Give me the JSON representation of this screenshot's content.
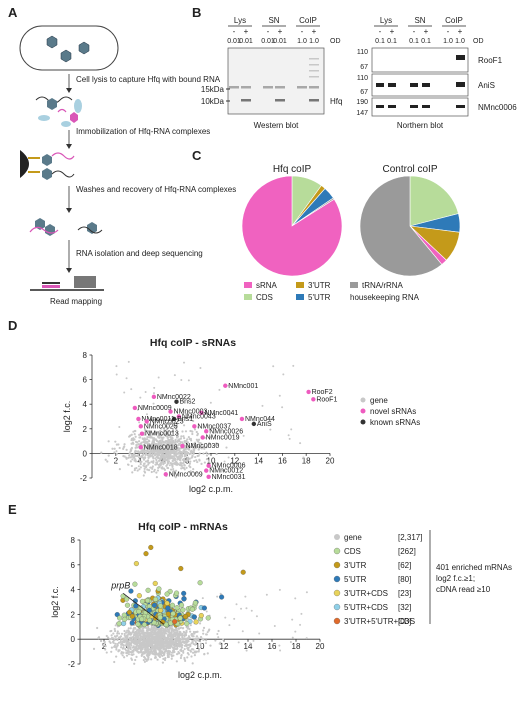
{
  "panels": {
    "A": "A",
    "B": "B",
    "C": "C",
    "D": "D",
    "E": "E"
  },
  "workflow": {
    "steps": [
      "Cell lysis to capture Hfq with bound RNA",
      "Immobilization of Hfq-RNA complexes",
      "Washes and recovery of Hfq-RNA complexes",
      "RNA isolation and deep sequencing"
    ],
    "read_mapping": "Read mapping"
  },
  "western": {
    "groups": [
      "Lys",
      "SN",
      "CoIP"
    ],
    "signs": [
      "-",
      "+",
      "-",
      "+",
      "-",
      "+"
    ],
    "od": [
      "0.01",
      "0.01",
      "0.01",
      "0.01",
      "1.0",
      "1.0"
    ],
    "od_label": "OD",
    "markers": [
      "15kDa",
      "10kDa"
    ],
    "band_label": "Hfq",
    "caption": "Western blot"
  },
  "northern": {
    "groups": [
      "Lys",
      "SN",
      "CoIP"
    ],
    "signs": [
      "-",
      "+",
      "-",
      "+",
      "-",
      "+"
    ],
    "od": [
      "0.1",
      "0.1",
      "0.1",
      "0.1",
      "1.0",
      "1.0"
    ],
    "od_label": "OD",
    "rows": [
      {
        "markers": [
          "110",
          "67"
        ],
        "label": "RooF1"
      },
      {
        "markers": [
          "110",
          "67"
        ],
        "label": "AniS"
      },
      {
        "markers": [
          "190",
          "147"
        ],
        "label": "NMnc0006"
      }
    ],
    "caption": "Northern blot"
  },
  "colors": {
    "sRNA": "#f062c0",
    "CDS": "#b7dc9a",
    "UTR3": "#c49a1a",
    "UTR5": "#2e7ab8",
    "trna": "#9a9a9a",
    "gene": "#c8c8c8",
    "novel": "#ee5bbf",
    "known": "#333333",
    "utr3cds": "#e8d35a",
    "utr5cds": "#8fd0e8",
    "all": "#e06a2a"
  },
  "pies": {
    "titles": [
      "Hfq coIP",
      "Control coIP"
    ],
    "legend": [
      "sRNA",
      "3'UTR",
      "tRNA/rRNA",
      "CDS",
      "5'UTR",
      "housekeeping RNA"
    ]
  },
  "chart_data": [
    {
      "type": "pie",
      "title": "Hfq coIP",
      "slices": [
        {
          "name": "sRNA",
          "value": 84
        },
        {
          "name": "CDS",
          "value": 10
        },
        {
          "name": "3'UTR",
          "value": 1.5
        },
        {
          "name": "5'UTR",
          "value": 4
        },
        {
          "name": "tRNA/rRNA",
          "value": 0.5
        }
      ]
    },
    {
      "type": "pie",
      "title": "Control coIP",
      "slices": [
        {
          "name": "tRNA/rRNA",
          "value": 61
        },
        {
          "name": "CDS",
          "value": 21
        },
        {
          "name": "5'UTR",
          "value": 6
        },
        {
          "name": "3'UTR",
          "value": 10
        },
        {
          "name": "sRNA",
          "value": 2
        }
      ]
    },
    {
      "type": "scatter",
      "title": "Hfq coIP - sRNAs",
      "xlabel": "log2 c.p.m.",
      "ylabel": "log2 f.c.",
      "xlim": [
        0,
        20
      ],
      "ylim": [
        -2,
        8
      ],
      "xticks": [
        2,
        4,
        6,
        8,
        10,
        12,
        14,
        16,
        18,
        20
      ],
      "yticks": [
        -2,
        0,
        2,
        4,
        6,
        8
      ],
      "legend": [
        "gene",
        "novel sRNAs",
        "known sRNAs"
      ],
      "points": [
        {
          "label": "NMnc001",
          "x": 11.2,
          "y": 5.5,
          "kind": "novel"
        },
        {
          "label": "RooF2",
          "x": 18.2,
          "y": 5.0,
          "kind": "novel"
        },
        {
          "label": "RooF1",
          "x": 18.6,
          "y": 4.4,
          "kind": "novel"
        },
        {
          "label": "NMnc044",
          "x": 12.6,
          "y": 2.8,
          "kind": "novel"
        },
        {
          "label": "AniS",
          "x": 13.6,
          "y": 2.4,
          "kind": "known"
        },
        {
          "label": "NMnc0022",
          "x": 5.2,
          "y": 4.6,
          "kind": "novel"
        },
        {
          "label": "Bns2",
          "x": 7.1,
          "y": 4.2,
          "kind": "known"
        },
        {
          "label": "NMnc0009",
          "x": 3.6,
          "y": 3.7,
          "kind": "novel"
        },
        {
          "label": "NMnc0041",
          "x": 9.2,
          "y": 3.3,
          "kind": "novel"
        },
        {
          "label": "NMnc0003",
          "x": 6.6,
          "y": 3.4,
          "kind": "novel"
        },
        {
          "label": "NMnc0043",
          "x": 7.3,
          "y": 3.0,
          "kind": "novel"
        },
        {
          "label": "Bns1",
          "x": 6.9,
          "y": 2.8,
          "kind": "known"
        },
        {
          "label": "NMnc0011",
          "x": 3.9,
          "y": 2.8,
          "kind": "novel"
        },
        {
          "label": "NMnc0023",
          "x": 4.6,
          "y": 2.6,
          "kind": "novel"
        },
        {
          "label": "NMnc0025",
          "x": 4.1,
          "y": 2.2,
          "kind": "novel"
        },
        {
          "label": "NMnc0013",
          "x": 4.2,
          "y": 1.6,
          "kind": "novel"
        },
        {
          "label": "NMnc0037",
          "x": 8.6,
          "y": 2.2,
          "kind": "novel"
        },
        {
          "label": "NMnc0026",
          "x": 9.6,
          "y": 1.8,
          "kind": "novel"
        },
        {
          "label": "NMnc0019",
          "x": 9.3,
          "y": 1.3,
          "kind": "novel"
        },
        {
          "label": "NMnc0018",
          "x": 4.1,
          "y": 0.5,
          "kind": "novel"
        },
        {
          "label": "NMnc0030",
          "x": 7.6,
          "y": 0.6,
          "kind": "novel"
        },
        {
          "label": "NMnc0006",
          "x": 9.8,
          "y": -1.0,
          "kind": "novel"
        },
        {
          "label": "NMnc0012",
          "x": 9.6,
          "y": -1.4,
          "kind": "novel"
        },
        {
          "label": "NMnc0031",
          "x": 9.8,
          "y": -1.9,
          "kind": "novel"
        },
        {
          "label": "NMnc0009",
          "x": 6.2,
          "y": -1.7,
          "kind": "novel"
        }
      ]
    },
    {
      "type": "scatter",
      "title": "Hfq coIP - mRNAs",
      "xlabel": "log2 c.p.m.",
      "ylabel": "log2 f.c.",
      "xlim": [
        0,
        20
      ],
      "ylim": [
        -2,
        8
      ],
      "xticks": [
        2,
        4,
        6,
        8,
        10,
        12,
        14,
        16,
        18,
        20
      ],
      "yticks": [
        -2,
        0,
        2,
        4,
        6,
        8
      ],
      "annotation": "prpB",
      "legend": [
        {
          "name": "gene",
          "count": "[2,317]"
        },
        {
          "name": "CDS",
          "count": "[262]"
        },
        {
          "name": "3'UTR",
          "count": "[62]"
        },
        {
          "name": "5'UTR",
          "count": "[80]"
        },
        {
          "name": "3'UTR+CDS",
          "count": "[23]"
        },
        {
          "name": "5'UTR+CDS",
          "count": "[32]"
        },
        {
          "name": "3'UTR+5'UTR+CDS",
          "count": "[03]"
        }
      ],
      "note": [
        "401 enriched mRNAs",
        "log2 f.c.≥1;",
        "cDNA read ≥10"
      ]
    }
  ]
}
